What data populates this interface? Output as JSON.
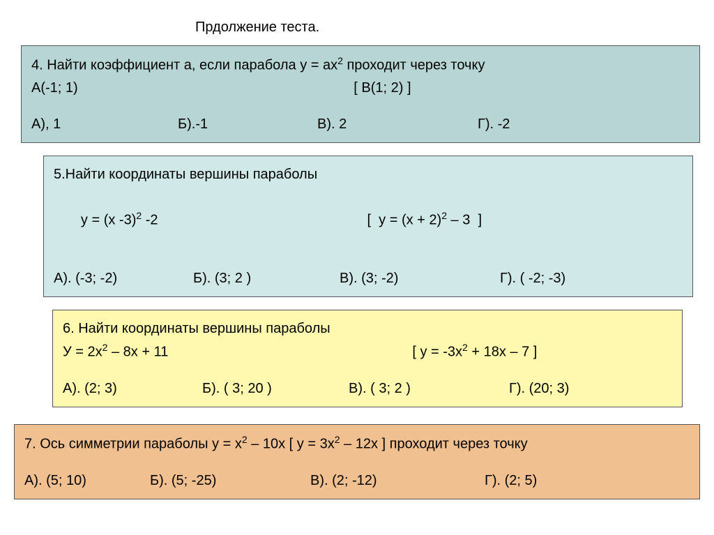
{
  "page_title": "Прдолжение теста.",
  "q4": {
    "prompt_line1": "4.  Найти коэффициент а, если парабола у = ах",
    "prompt_sup": "2",
    "prompt_line1b": " проходит через точку",
    "prompt_line2a": "А(-1; 1)",
    "prompt_line2b": "[  В(1; 2) ]",
    "opts": {
      "a": "А), 1",
      "b": "Б).-1",
      "v": "В). 2",
      "g": "Г). -2"
    },
    "bg": "#b8d5d5"
  },
  "q5": {
    "prompt_line1": "5.Найти координаты вершины параболы",
    "eq_left_a": "   у = (х -3)",
    "eq_left_sup": "2",
    "eq_left_b": " -2",
    "eq_right_a": "[  у = (х + 2)",
    "eq_right_sup": "2",
    "eq_right_b": " – 3  ]",
    "opts": {
      "a": "А). (-3; -2)",
      "b": "Б). (3; 2 )",
      "v": "В). (3; -2)",
      "g": "Г). ( -2; -3)"
    },
    "bg": "#d0e8e8"
  },
  "q6": {
    "prompt_line1": "6. Найти координаты вершины параболы",
    "eq_left_a": "У = 2х",
    "eq_left_sup": "2",
    "eq_left_b": " – 8х + 11",
    "eq_right_a": "[ у = -3х",
    "eq_right_sup": "2",
    "eq_right_b": " + 18х – 7   ]",
    "opts": {
      "a": "А). (2; 3)",
      "b": "Б). ( 3; 20 )",
      "v": "В).  ( 3; 2 )",
      "g": "Г).  (20; 3)"
    },
    "bg": "#fff9b0"
  },
  "q7": {
    "prompt_a": "7. Ось симметрии параболы у = х",
    "prompt_sup1": "2",
    "prompt_b": " – 10х   [ у = 3х",
    "prompt_sup2": "2",
    "prompt_c": " – 12х ] проходит через точку",
    "opts": {
      "a": "А). (5; 10)",
      "b": "Б). (5; -25)",
      "v": "В). (2; -12)",
      "g": "Г). (2; 5)"
    },
    "bg": "#f0c090"
  }
}
